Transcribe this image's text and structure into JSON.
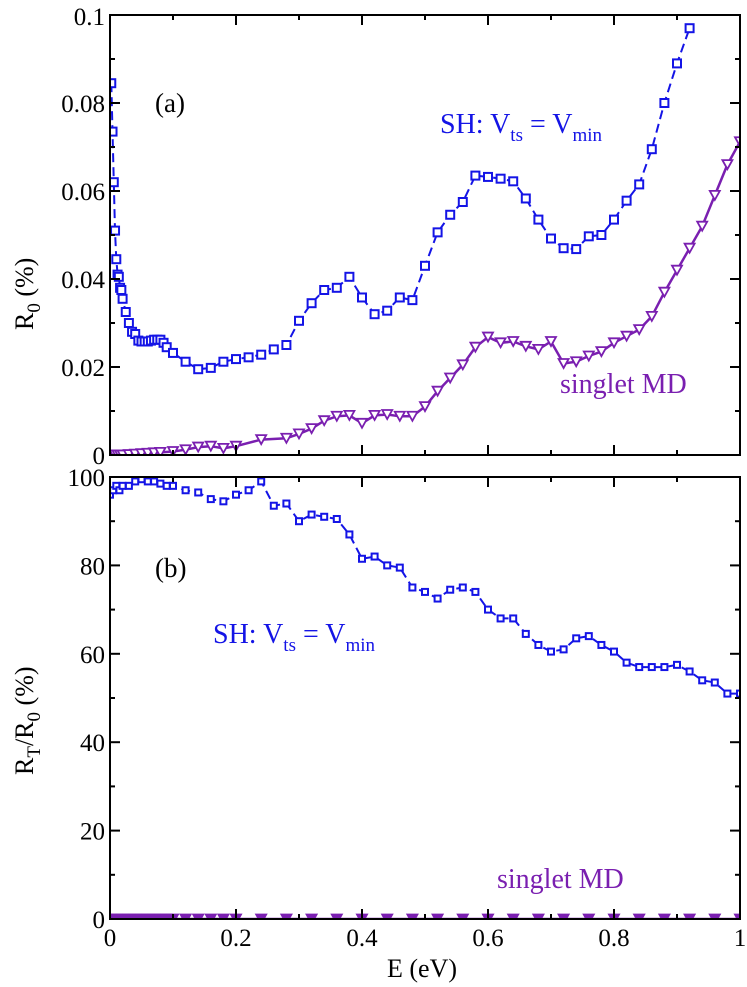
{
  "colors": {
    "sh": "#1414e6",
    "md": "#7a1fb0",
    "axis": "#000000"
  },
  "chart_data": [
    {
      "id": "panel-a",
      "type": "line",
      "panel_label": "(a)",
      "ylabel": {
        "main": "R",
        "sub": "0",
        "rest": " (%)"
      },
      "xlim": [
        0,
        1
      ],
      "ylim": [
        0,
        0.1
      ],
      "yticks": [
        0,
        0.02,
        0.04,
        0.06,
        0.08,
        0.1
      ],
      "ytick_labels": [
        "0",
        "0.02",
        "0.04",
        "0.06",
        "0.08",
        "0.1"
      ],
      "annotations": {
        "sh": {
          "pre": "SH: V",
          "sub1": "ts",
          "mid": " = V",
          "sub2": "min"
        },
        "md": "singlet MD"
      },
      "series": [
        {
          "name": "SH: Vts = Vmin",
          "style": "dashed-square",
          "x": [
            0.002,
            0.004,
            0.006,
            0.008,
            0.01,
            0.012,
            0.014,
            0.016,
            0.018,
            0.02,
            0.025,
            0.03,
            0.035,
            0.04,
            0.045,
            0.05,
            0.055,
            0.06,
            0.065,
            0.07,
            0.075,
            0.08,
            0.085,
            0.09,
            0.1,
            0.12,
            0.14,
            0.16,
            0.18,
            0.2,
            0.22,
            0.24,
            0.26,
            0.28,
            0.3,
            0.32,
            0.34,
            0.36,
            0.38,
            0.4,
            0.42,
            0.44,
            0.46,
            0.48,
            0.5,
            0.52,
            0.54,
            0.56,
            0.58,
            0.6,
            0.62,
            0.64,
            0.66,
            0.68,
            0.7,
            0.72,
            0.74,
            0.76,
            0.78,
            0.8,
            0.82,
            0.84,
            0.86,
            0.88,
            0.9,
            0.92
          ],
          "values": [
            0.0845,
            0.0735,
            0.062,
            0.051,
            0.0445,
            0.041,
            0.0405,
            0.038,
            0.0375,
            0.0355,
            0.0325,
            0.03,
            0.028,
            0.0275,
            0.026,
            0.0258,
            0.0258,
            0.0258,
            0.026,
            0.0262,
            0.0262,
            0.0262,
            0.0255,
            0.0245,
            0.0232,
            0.0212,
            0.0195,
            0.0198,
            0.0212,
            0.0218,
            0.0222,
            0.0228,
            0.024,
            0.025,
            0.0305,
            0.0345,
            0.0375,
            0.038,
            0.0405,
            0.0358,
            0.032,
            0.0328,
            0.0358,
            0.0352,
            0.043,
            0.0506,
            0.0546,
            0.0575,
            0.0635,
            0.0632,
            0.0628,
            0.0622,
            0.0583,
            0.0535,
            0.0492,
            0.047,
            0.0468,
            0.0497,
            0.05,
            0.0535,
            0.0578,
            0.0615,
            0.0695,
            0.08,
            0.089,
            0.097
          ]
        },
        {
          "name": "singlet MD",
          "style": "solid-triangle",
          "x": [
            0,
            0.004,
            0.008,
            0.012,
            0.016,
            0.02,
            0.03,
            0.04,
            0.05,
            0.06,
            0.07,
            0.08,
            0.1,
            0.12,
            0.14,
            0.16,
            0.18,
            0.2,
            0.24,
            0.28,
            0.3,
            0.32,
            0.34,
            0.36,
            0.38,
            0.4,
            0.42,
            0.44,
            0.46,
            0.48,
            0.5,
            0.52,
            0.54,
            0.56,
            0.58,
            0.6,
            0.62,
            0.64,
            0.66,
            0.68,
            0.7,
            0.72,
            0.74,
            0.76,
            0.78,
            0.8,
            0.82,
            0.84,
            0.86,
            0.88,
            0.9,
            0.92,
            0.94,
            0.96,
            0.98,
            1.0
          ],
          "values": [
            0,
            0,
            0,
            0,
            0,
            0,
            0.0001,
            0.0002,
            0.0003,
            0.0004,
            0.0005,
            0.0006,
            0.0008,
            0.0012,
            0.0018,
            0.002,
            0.0015,
            0.002,
            0.0035,
            0.0038,
            0.0048,
            0.006,
            0.0078,
            0.0088,
            0.009,
            0.0072,
            0.009,
            0.0092,
            0.0088,
            0.0088,
            0.011,
            0.0145,
            0.0175,
            0.0205,
            0.0245,
            0.0268,
            0.0255,
            0.0258,
            0.0247,
            0.024,
            0.0258,
            0.0208,
            0.0212,
            0.0225,
            0.0235,
            0.0255,
            0.027,
            0.0285,
            0.0315,
            0.037,
            0.042,
            0.047,
            0.052,
            0.059,
            0.066,
            0.0712
          ]
        }
      ]
    },
    {
      "id": "panel-b",
      "type": "line",
      "panel_label": "(b)",
      "ylabel": {
        "main": "R",
        "sub": "T",
        "mid": "/R",
        "sub2": "0",
        "rest": " (%)"
      },
      "xlabel": "E (eV)",
      "xlim": [
        0,
        1
      ],
      "ylim": [
        0,
        100
      ],
      "xticks": [
        0,
        0.2,
        0.4,
        0.6,
        0.8,
        1
      ],
      "xtick_labels": [
        "0",
        "0.2",
        "0.4",
        "0.6",
        "0.8",
        "1"
      ],
      "yticks": [
        0,
        20,
        40,
        60,
        80,
        100
      ],
      "ytick_labels": [
        "0",
        "20",
        "40",
        "60",
        "80",
        "100"
      ],
      "annotations": {
        "sh": {
          "pre": "SH: V",
          "sub1": "ts",
          "mid": " = V",
          "sub2": "min"
        },
        "md": "singlet MD"
      },
      "series": [
        {
          "name": "SH: Vts = Vmin",
          "style": "dashed-square",
          "x": [
            0.0,
            0.005,
            0.01,
            0.015,
            0.02,
            0.03,
            0.04,
            0.05,
            0.06,
            0.07,
            0.08,
            0.09,
            0.1,
            0.12,
            0.14,
            0.16,
            0.18,
            0.2,
            0.22,
            0.24,
            0.26,
            0.28,
            0.3,
            0.32,
            0.34,
            0.36,
            0.38,
            0.4,
            0.42,
            0.44,
            0.46,
            0.48,
            0.5,
            0.52,
            0.54,
            0.56,
            0.58,
            0.6,
            0.62,
            0.64,
            0.66,
            0.68,
            0.7,
            0.72,
            0.74,
            0.76,
            0.78,
            0.8,
            0.82,
            0.84,
            0.86,
            0.88,
            0.9,
            0.92,
            0.94,
            0.96,
            0.98,
            1.0
          ],
          "values": [
            96,
            97,
            98,
            97,
            98,
            98,
            99,
            99.5,
            99,
            99,
            98.5,
            98,
            98,
            97,
            96.5,
            95,
            94.5,
            96,
            97,
            99,
            93.5,
            94,
            90,
            91.5,
            91,
            90.5,
            87,
            81.5,
            82,
            80,
            79.5,
            75,
            74,
            72.5,
            74.5,
            75,
            74,
            70,
            68,
            68,
            64.5,
            62,
            60.5,
            61,
            63.5,
            64,
            62,
            60.5,
            58,
            57,
            57,
            57,
            57.5,
            56,
            54,
            53.5,
            51,
            51
          ]
        },
        {
          "name": "singlet MD",
          "style": "solid-triangle",
          "x": [
            0,
            0.01,
            0.02,
            0.03,
            0.04,
            0.05,
            0.06,
            0.07,
            0.08,
            0.09,
            0.1,
            0.12,
            0.14,
            0.16,
            0.18,
            0.2,
            0.24,
            0.28,
            0.32,
            0.36,
            0.4,
            0.44,
            0.48,
            0.52,
            0.56,
            0.6,
            0.64,
            0.68,
            0.72,
            0.76,
            0.8,
            0.84,
            0.88,
            0.92,
            0.96,
            1.0
          ],
          "values": [
            0,
            0,
            0,
            0,
            0,
            0,
            0,
            0,
            0,
            0,
            0,
            0,
            0,
            0,
            0,
            0,
            0,
            0,
            0,
            0,
            0,
            0,
            0,
            0,
            0,
            0,
            0,
            0,
            0,
            0,
            0,
            0,
            0,
            0,
            0,
            0
          ]
        }
      ]
    }
  ]
}
